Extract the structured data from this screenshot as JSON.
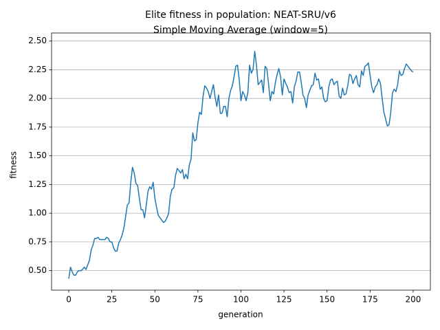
{
  "chart_data": {
    "type": "line",
    "title": "Elite fitness in population: NEAT-SRU/v6",
    "subtitle": "Simple Moving Average (window=5)",
    "x_label": "generation",
    "y_label": "fitness",
    "x": [
      0,
      1,
      2,
      3,
      4,
      5,
      6,
      7,
      8,
      9,
      10,
      11,
      12,
      13,
      14,
      15,
      16,
      17,
      18,
      19,
      20,
      21,
      22,
      23,
      24,
      25,
      26,
      27,
      28,
      29,
      30,
      31,
      32,
      33,
      34,
      35,
      36,
      37,
      38,
      39,
      40,
      41,
      42,
      43,
      44,
      45,
      46,
      47,
      48,
      49,
      50,
      51,
      52,
      53,
      54,
      55,
      56,
      57,
      58,
      59,
      60,
      61,
      62,
      63,
      64,
      65,
      66,
      67,
      68,
      69,
      70,
      71,
      72,
      73,
      74,
      75,
      76,
      77,
      78,
      79,
      80,
      81,
      82,
      83,
      84,
      85,
      86,
      87,
      88,
      89,
      90,
      91,
      92,
      93,
      94,
      95,
      96,
      97,
      98,
      99,
      100,
      101,
      102,
      103,
      104,
      105,
      106,
      107,
      108,
      109,
      110,
      111,
      112,
      113,
      114,
      115,
      116,
      117,
      118,
      119,
      120,
      121,
      122,
      123,
      124,
      125,
      126,
      127,
      128,
      129,
      130,
      131,
      132,
      133,
      134,
      135,
      136,
      137,
      138,
      139,
      140,
      141,
      142,
      143,
      144,
      145,
      146,
      147,
      148,
      149,
      150,
      151,
      152,
      153,
      154,
      155,
      156,
      157,
      158,
      159,
      160,
      161,
      162,
      163,
      164,
      165,
      166,
      167,
      168,
      169,
      170,
      171,
      172,
      173,
      174,
      175,
      176,
      177,
      178,
      179,
      180,
      181,
      182,
      183,
      184,
      185,
      186,
      187,
      188,
      189,
      190,
      191,
      192,
      193,
      194,
      195,
      196,
      197,
      198,
      199,
      200
    ],
    "series": [
      {
        "color": "#1f77b4",
        "values": [
          0.43,
          0.53,
          0.49,
          0.46,
          0.46,
          0.49,
          0.5,
          0.5,
          0.51,
          0.53,
          0.51,
          0.55,
          0.59,
          0.68,
          0.72,
          0.78,
          0.78,
          0.79,
          0.77,
          0.77,
          0.77,
          0.77,
          0.79,
          0.78,
          0.75,
          0.75,
          0.7,
          0.67,
          0.67,
          0.74,
          0.77,
          0.81,
          0.87,
          0.97,
          1.07,
          1.09,
          1.27,
          1.4,
          1.35,
          1.26,
          1.24,
          1.13,
          1.03,
          1.03,
          0.96,
          1.07,
          1.19,
          1.23,
          1.21,
          1.27,
          1.13,
          1.05,
          0.98,
          0.96,
          0.94,
          0.92,
          0.93,
          0.96,
          1.0,
          1.15,
          1.21,
          1.22,
          1.33,
          1.39,
          1.37,
          1.35,
          1.38,
          1.3,
          1.34,
          1.3,
          1.42,
          1.47,
          1.7,
          1.63,
          1.64,
          1.79,
          1.88,
          1.86,
          2.02,
          2.11,
          2.09,
          2.06,
          2.0,
          2.06,
          2.12,
          2.01,
          1.93,
          2.03,
          1.87,
          1.87,
          1.93,
          1.93,
          1.84,
          2.0,
          2.07,
          2.11,
          2.19,
          2.28,
          2.29,
          2.16,
          1.98,
          2.06,
          2.03,
          1.98,
          2.05,
          2.29,
          2.22,
          2.25,
          2.41,
          2.29,
          2.12,
          2.14,
          2.16,
          2.05,
          2.28,
          2.26,
          2.13,
          1.98,
          2.06,
          2.04,
          2.14,
          2.21,
          2.26,
          2.19,
          2.03,
          2.17,
          2.13,
          2.1,
          2.05,
          2.06,
          1.96,
          2.1,
          2.15,
          2.23,
          2.23,
          2.14,
          2.03,
          2.0,
          1.92,
          2.03,
          2.07,
          2.11,
          2.12,
          2.22,
          2.16,
          2.17,
          2.08,
          2.1,
          2.0,
          1.97,
          1.98,
          2.1,
          2.16,
          2.17,
          2.12,
          2.14,
          2.15,
          2.02,
          2.0,
          2.09,
          2.03,
          2.04,
          2.11,
          2.21,
          2.2,
          2.13,
          2.17,
          2.2,
          2.12,
          2.1,
          2.24,
          2.2,
          2.28,
          2.29,
          2.31,
          2.2,
          2.1,
          2.05,
          2.1,
          2.12,
          2.17,
          2.13,
          2.0,
          1.88,
          1.82,
          1.76,
          1.77,
          1.88,
          2.05,
          2.08,
          2.06,
          2.12,
          2.24,
          2.2,
          2.21,
          2.26,
          2.3,
          2.28,
          2.26,
          2.24,
          2.23
        ]
      }
    ],
    "xlim": [
      -10,
      210
    ],
    "ylim": [
      0.33,
      2.57
    ],
    "xticks": [
      0,
      25,
      50,
      75,
      100,
      125,
      150,
      175,
      200
    ],
    "yticks": [
      {
        "value": 0.5,
        "label": "0.50"
      },
      {
        "value": 0.75,
        "label": "0.75"
      },
      {
        "value": 1,
        "label": "1.00"
      },
      {
        "value": 1.25,
        "label": "1.25"
      },
      {
        "value": 1.5,
        "label": "1.50"
      },
      {
        "value": 1.75,
        "label": "1.75"
      },
      {
        "value": 2,
        "label": "2.00"
      },
      {
        "value": 2.25,
        "label": "2.25"
      },
      {
        "value": 2.5,
        "label": "2.50"
      }
    ],
    "grid": "y"
  }
}
